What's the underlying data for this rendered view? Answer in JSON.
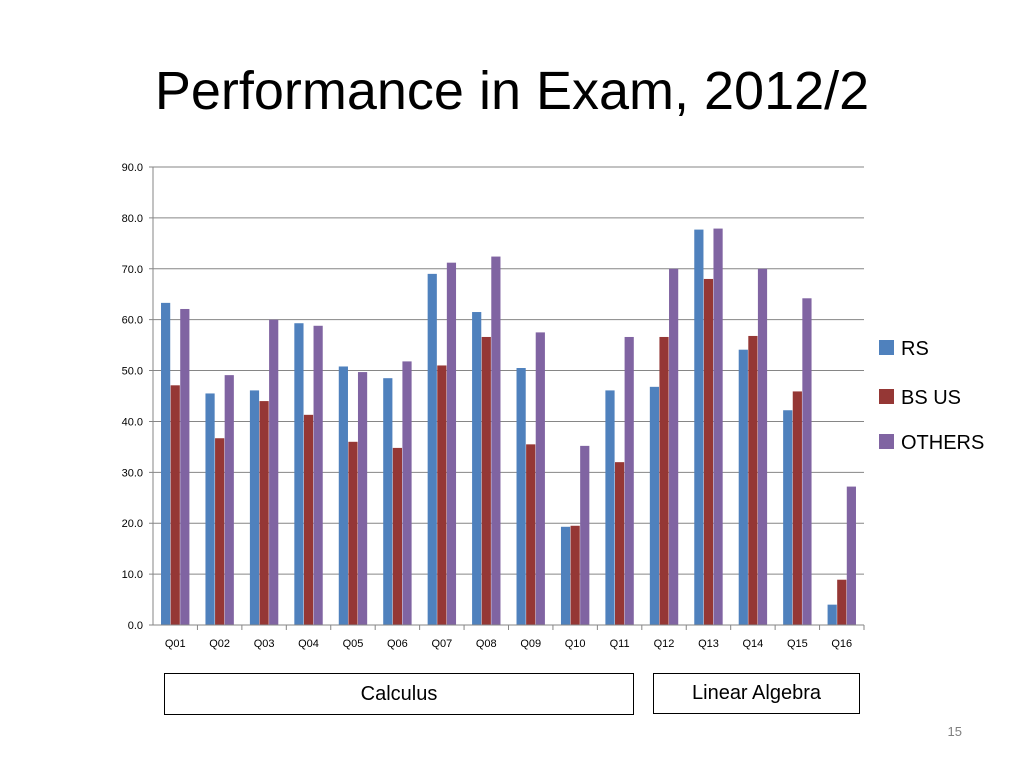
{
  "slide": {
    "title": "Performance in Exam, 2012/2",
    "page_number": "15",
    "groups": {
      "calculus": "Calculus",
      "linear_algebra": "Linear Algebra"
    }
  },
  "chart_data": {
    "type": "bar",
    "categories": [
      "Q01",
      "Q02",
      "Q03",
      "Q04",
      "Q05",
      "Q06",
      "Q07",
      "Q08",
      "Q09",
      "Q10",
      "Q11",
      "Q12",
      "Q13",
      "Q14",
      "Q15",
      "Q16"
    ],
    "series": [
      {
        "name": "RS",
        "color": "#4f81bd",
        "values": [
          63.3,
          45.5,
          46.1,
          59.3,
          50.8,
          48.5,
          69.0,
          61.5,
          50.5,
          19.3,
          46.1,
          46.8,
          77.7,
          54.1,
          42.2,
          4.0
        ]
      },
      {
        "name": "BS US",
        "color": "#953735",
        "values": [
          47.1,
          36.7,
          44.0,
          41.3,
          36.0,
          34.8,
          51.0,
          56.6,
          35.5,
          19.5,
          32.0,
          56.6,
          68.0,
          56.8,
          45.9,
          8.9
        ]
      },
      {
        "name": "OTHERS",
        "color": "#8064a2",
        "values": [
          62.1,
          49.1,
          60.0,
          58.8,
          49.7,
          51.8,
          71.2,
          72.4,
          57.5,
          35.2,
          56.6,
          70.0,
          77.9,
          70.0,
          64.2,
          27.2
        ]
      }
    ],
    "ylim": [
      0,
      90
    ],
    "yticks": [
      "0.0",
      "10.0",
      "20.0",
      "30.0",
      "40.0",
      "50.0",
      "60.0",
      "70.0",
      "80.0",
      "90.0"
    ],
    "grid": true,
    "legend_position": "right"
  }
}
